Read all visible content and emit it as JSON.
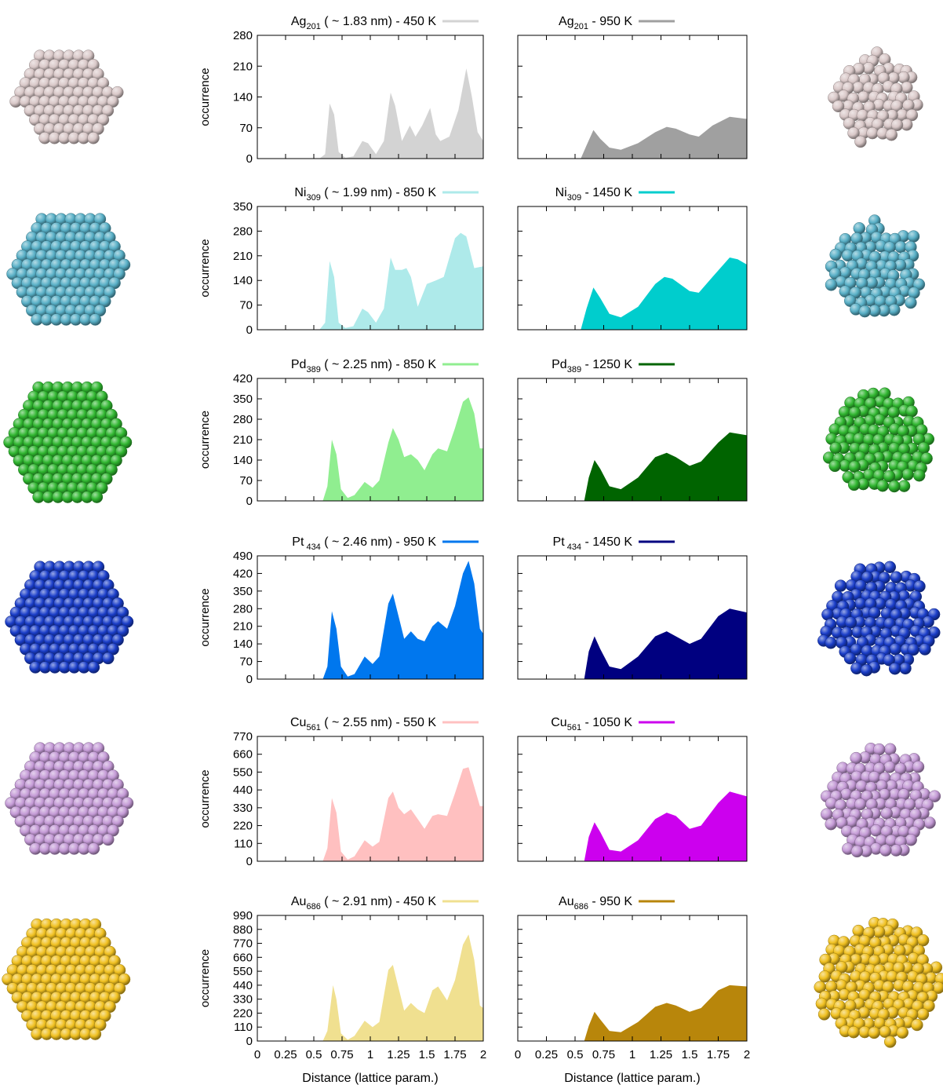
{
  "x_axis": {
    "label": "Distance (lattice param.)",
    "ticks": [
      "0",
      "0.25",
      "0.5",
      "0.75",
      "1",
      "1.25",
      "1.5",
      "1.75",
      "2"
    ],
    "range": [
      0,
      2
    ]
  },
  "y_axis_label": "occurrence",
  "chart_data": [
    {
      "type": "area",
      "element": "Ag",
      "subscript": "201",
      "left_title": {
        "tail": " ( ~ 1.83 nm) - 450 K",
        "color": "#d3d3d3"
      },
      "right_title": {
        "tail": " - 950 K",
        "color": "#a0a0a0"
      },
      "ylim": [
        0,
        280
      ],
      "yticks": [
        "0",
        "70",
        "140",
        "210",
        "280"
      ],
      "left_series": [
        [
          0,
          0
        ],
        [
          0.55,
          0
        ],
        [
          0.6,
          10
        ],
        [
          0.64,
          125
        ],
        [
          0.68,
          100
        ],
        [
          0.72,
          15
        ],
        [
          0.78,
          2
        ],
        [
          0.85,
          5
        ],
        [
          0.93,
          40
        ],
        [
          0.98,
          35
        ],
        [
          1.05,
          10
        ],
        [
          1.12,
          40
        ],
        [
          1.18,
          150
        ],
        [
          1.22,
          120
        ],
        [
          1.28,
          40
        ],
        [
          1.35,
          75
        ],
        [
          1.4,
          50
        ],
        [
          1.46,
          75
        ],
        [
          1.53,
          115
        ],
        [
          1.58,
          55
        ],
        [
          1.62,
          40
        ],
        [
          1.7,
          50
        ],
        [
          1.78,
          110
        ],
        [
          1.85,
          205
        ],
        [
          1.9,
          140
        ],
        [
          1.95,
          60
        ],
        [
          2,
          40
        ]
      ],
      "right_series": [
        [
          0,
          0
        ],
        [
          0.55,
          0
        ],
        [
          0.6,
          30
        ],
        [
          0.66,
          65
        ],
        [
          0.72,
          45
        ],
        [
          0.8,
          25
        ],
        [
          0.9,
          20
        ],
        [
          1.05,
          35
        ],
        [
          1.2,
          60
        ],
        [
          1.3,
          72
        ],
        [
          1.38,
          68
        ],
        [
          1.5,
          55
        ],
        [
          1.58,
          50
        ],
        [
          1.7,
          75
        ],
        [
          1.85,
          95
        ],
        [
          2,
          90
        ]
      ]
    },
    {
      "type": "area",
      "element": "Ni",
      "subscript": "309",
      "left_title": {
        "tail": " ( ~ 1.99 nm) - 850 K",
        "color": "#aeeaea"
      },
      "right_title": {
        "tail": " - 1450 K",
        "color": "#00cdcd"
      },
      "ylim": [
        0,
        350
      ],
      "yticks": [
        "0",
        "70",
        "140",
        "210",
        "280",
        "350"
      ],
      "left_series": [
        [
          0,
          0
        ],
        [
          0.55,
          0
        ],
        [
          0.6,
          20
        ],
        [
          0.64,
          195
        ],
        [
          0.68,
          150
        ],
        [
          0.72,
          20
        ],
        [
          0.78,
          5
        ],
        [
          0.85,
          10
        ],
        [
          0.93,
          60
        ],
        [
          0.98,
          50
        ],
        [
          1.05,
          20
        ],
        [
          1.12,
          60
        ],
        [
          1.18,
          205
        ],
        [
          1.22,
          170
        ],
        [
          1.28,
          170
        ],
        [
          1.32,
          175
        ],
        [
          1.36,
          150
        ],
        [
          1.42,
          65
        ],
        [
          1.5,
          130
        ],
        [
          1.58,
          140
        ],
        [
          1.65,
          150
        ],
        [
          1.75,
          260
        ],
        [
          1.8,
          275
        ],
        [
          1.85,
          265
        ],
        [
          1.92,
          175
        ],
        [
          2,
          180
        ]
      ],
      "right_series": [
        [
          0,
          0
        ],
        [
          0.55,
          0
        ],
        [
          0.6,
          60
        ],
        [
          0.66,
          120
        ],
        [
          0.72,
          90
        ],
        [
          0.8,
          45
        ],
        [
          0.9,
          35
        ],
        [
          1.05,
          65
        ],
        [
          1.2,
          130
        ],
        [
          1.28,
          150
        ],
        [
          1.35,
          145
        ],
        [
          1.5,
          110
        ],
        [
          1.58,
          105
        ],
        [
          1.7,
          150
        ],
        [
          1.85,
          205
        ],
        [
          1.92,
          200
        ],
        [
          2,
          185
        ]
      ]
    },
    {
      "type": "area",
      "element": "Pd",
      "subscript": "389",
      "left_title": {
        "tail": " ( ~ 2.25 nm)  - 850 K",
        "color": "#90ee90"
      },
      "right_title": {
        "tail": " - 1250 K",
        "color": "#006400"
      },
      "ylim": [
        0,
        420
      ],
      "yticks": [
        "0",
        "70",
        "140",
        "210",
        "280",
        "350",
        "420"
      ],
      "left_series": [
        [
          0,
          0
        ],
        [
          0.58,
          0
        ],
        [
          0.62,
          50
        ],
        [
          0.66,
          210
        ],
        [
          0.7,
          160
        ],
        [
          0.74,
          40
        ],
        [
          0.8,
          10
        ],
        [
          0.86,
          20
        ],
        [
          0.95,
          65
        ],
        [
          1.02,
          45
        ],
        [
          1.08,
          70
        ],
        [
          1.16,
          200
        ],
        [
          1.2,
          250
        ],
        [
          1.25,
          210
        ],
        [
          1.3,
          150
        ],
        [
          1.36,
          160
        ],
        [
          1.42,
          140
        ],
        [
          1.48,
          105
        ],
        [
          1.55,
          160
        ],
        [
          1.6,
          180
        ],
        [
          1.68,
          170
        ],
        [
          1.75,
          250
        ],
        [
          1.82,
          340
        ],
        [
          1.87,
          355
        ],
        [
          1.92,
          300
        ],
        [
          1.97,
          180
        ],
        [
          2,
          180
        ]
      ],
      "right_series": [
        [
          0,
          0
        ],
        [
          0.58,
          0
        ],
        [
          0.62,
          80
        ],
        [
          0.67,
          140
        ],
        [
          0.72,
          110
        ],
        [
          0.8,
          50
        ],
        [
          0.9,
          40
        ],
        [
          1.05,
          80
        ],
        [
          1.2,
          150
        ],
        [
          1.3,
          165
        ],
        [
          1.38,
          150
        ],
        [
          1.5,
          120
        ],
        [
          1.6,
          135
        ],
        [
          1.75,
          200
        ],
        [
          1.85,
          235
        ],
        [
          2,
          225
        ]
      ]
    },
    {
      "type": "area",
      "element": "Pt",
      "subscript": " 434",
      "left_title": {
        "tail": " ( ~ 2.46 nm) - 950 K",
        "color": "#0077ee"
      },
      "right_title": {
        "tail": " - 1450 K",
        "color": "#000080"
      },
      "ylim": [
        0,
        490
      ],
      "yticks": [
        "0",
        "70",
        "140",
        "210",
        "280",
        "350",
        "420",
        "490"
      ],
      "left_series": [
        [
          0,
          0
        ],
        [
          0.58,
          0
        ],
        [
          0.62,
          50
        ],
        [
          0.66,
          270
        ],
        [
          0.7,
          200
        ],
        [
          0.74,
          50
        ],
        [
          0.8,
          10
        ],
        [
          0.86,
          20
        ],
        [
          0.95,
          90
        ],
        [
          1.02,
          60
        ],
        [
          1.08,
          90
        ],
        [
          1.16,
          300
        ],
        [
          1.2,
          340
        ],
        [
          1.25,
          250
        ],
        [
          1.3,
          160
        ],
        [
          1.36,
          190
        ],
        [
          1.42,
          160
        ],
        [
          1.48,
          150
        ],
        [
          1.55,
          210
        ],
        [
          1.6,
          230
        ],
        [
          1.68,
          200
        ],
        [
          1.75,
          290
        ],
        [
          1.82,
          420
        ],
        [
          1.87,
          470
        ],
        [
          1.92,
          380
        ],
        [
          1.97,
          200
        ],
        [
          2,
          180
        ]
      ],
      "right_series": [
        [
          0,
          0
        ],
        [
          0.58,
          0
        ],
        [
          0.62,
          110
        ],
        [
          0.67,
          170
        ],
        [
          0.72,
          120
        ],
        [
          0.8,
          50
        ],
        [
          0.9,
          40
        ],
        [
          1.05,
          90
        ],
        [
          1.2,
          170
        ],
        [
          1.3,
          190
        ],
        [
          1.38,
          170
        ],
        [
          1.5,
          140
        ],
        [
          1.6,
          160
        ],
        [
          1.75,
          250
        ],
        [
          1.85,
          280
        ],
        [
          2,
          265
        ]
      ]
    },
    {
      "type": "area",
      "element": "Cu",
      "subscript": "561",
      "left_title": {
        "tail": " ( ~ 2.55 nm) - 550 K",
        "color": "#ffc0c0"
      },
      "right_title": {
        "tail": " - 1050 K",
        "color": "#cc00ee"
      },
      "ylim": [
        0,
        770
      ],
      "yticks": [
        "0",
        "110",
        "220",
        "330",
        "440",
        "550",
        "660",
        "770"
      ],
      "left_series": [
        [
          0,
          0
        ],
        [
          0.58,
          0
        ],
        [
          0.62,
          80
        ],
        [
          0.66,
          390
        ],
        [
          0.7,
          300
        ],
        [
          0.74,
          60
        ],
        [
          0.8,
          10
        ],
        [
          0.86,
          30
        ],
        [
          0.95,
          130
        ],
        [
          1.02,
          90
        ],
        [
          1.08,
          120
        ],
        [
          1.16,
          390
        ],
        [
          1.2,
          430
        ],
        [
          1.25,
          330
        ],
        [
          1.3,
          290
        ],
        [
          1.36,
          320
        ],
        [
          1.42,
          260
        ],
        [
          1.48,
          200
        ],
        [
          1.55,
          280
        ],
        [
          1.6,
          290
        ],
        [
          1.68,
          280
        ],
        [
          1.75,
          420
        ],
        [
          1.82,
          570
        ],
        [
          1.87,
          580
        ],
        [
          1.92,
          460
        ],
        [
          1.97,
          340
        ],
        [
          2,
          340
        ]
      ],
      "right_series": [
        [
          0,
          0
        ],
        [
          0.58,
          0
        ],
        [
          0.62,
          150
        ],
        [
          0.67,
          240
        ],
        [
          0.72,
          180
        ],
        [
          0.8,
          70
        ],
        [
          0.9,
          60
        ],
        [
          1.05,
          130
        ],
        [
          1.2,
          260
        ],
        [
          1.3,
          300
        ],
        [
          1.38,
          280
        ],
        [
          1.5,
          200
        ],
        [
          1.6,
          220
        ],
        [
          1.75,
          360
        ],
        [
          1.85,
          430
        ],
        [
          2,
          400
        ]
      ]
    },
    {
      "type": "area",
      "element": "Au",
      "subscript": "686",
      "left_title": {
        "tail": " ( ~ 2.91 nm) - 450 K",
        "color": "#f0e090"
      },
      "right_title": {
        "tail": " - 950 K",
        "color": "#b8860b"
      },
      "ylim": [
        0,
        990
      ],
      "yticks": [
        "0",
        "110",
        "220",
        "330",
        "440",
        "550",
        "660",
        "770",
        "880",
        "990"
      ],
      "left_series": [
        [
          0,
          0
        ],
        [
          0.58,
          0
        ],
        [
          0.62,
          80
        ],
        [
          0.67,
          440
        ],
        [
          0.7,
          330
        ],
        [
          0.74,
          60
        ],
        [
          0.8,
          10
        ],
        [
          0.86,
          40
        ],
        [
          0.95,
          160
        ],
        [
          1.02,
          110
        ],
        [
          1.08,
          150
        ],
        [
          1.16,
          560
        ],
        [
          1.2,
          600
        ],
        [
          1.25,
          420
        ],
        [
          1.3,
          240
        ],
        [
          1.36,
          300
        ],
        [
          1.42,
          250
        ],
        [
          1.48,
          220
        ],
        [
          1.55,
          400
        ],
        [
          1.6,
          430
        ],
        [
          1.68,
          320
        ],
        [
          1.75,
          480
        ],
        [
          1.82,
          760
        ],
        [
          1.87,
          840
        ],
        [
          1.92,
          640
        ],
        [
          1.97,
          280
        ],
        [
          2,
          260
        ]
      ],
      "right_series": [
        [
          0,
          0
        ],
        [
          0.58,
          0
        ],
        [
          0.62,
          120
        ],
        [
          0.67,
          230
        ],
        [
          0.72,
          170
        ],
        [
          0.8,
          80
        ],
        [
          0.9,
          70
        ],
        [
          1.05,
          150
        ],
        [
          1.2,
          270
        ],
        [
          1.3,
          300
        ],
        [
          1.38,
          280
        ],
        [
          1.5,
          230
        ],
        [
          1.6,
          260
        ],
        [
          1.75,
          400
        ],
        [
          1.85,
          440
        ],
        [
          2,
          430
        ]
      ]
    }
  ],
  "clusters": [
    {
      "shape": "faceted",
      "left_color": "#d9c8c8",
      "right_color": "#d9c8c8"
    },
    {
      "shape": "faceted",
      "left_color": "#58afc6",
      "right_color": "#58afc6"
    },
    {
      "shape": "faceted",
      "left_color": "#2fb52f",
      "right_color": "#2fb52f"
    },
    {
      "shape": "faceted",
      "left_color": "#1a3dc8",
      "right_color": "#1a3dc8"
    },
    {
      "shape": "faceted",
      "left_color": "#c49ad6",
      "right_color": "#c49ad6"
    },
    {
      "shape": "faceted",
      "left_color": "#f0c020",
      "right_color": "#f0c020"
    }
  ]
}
